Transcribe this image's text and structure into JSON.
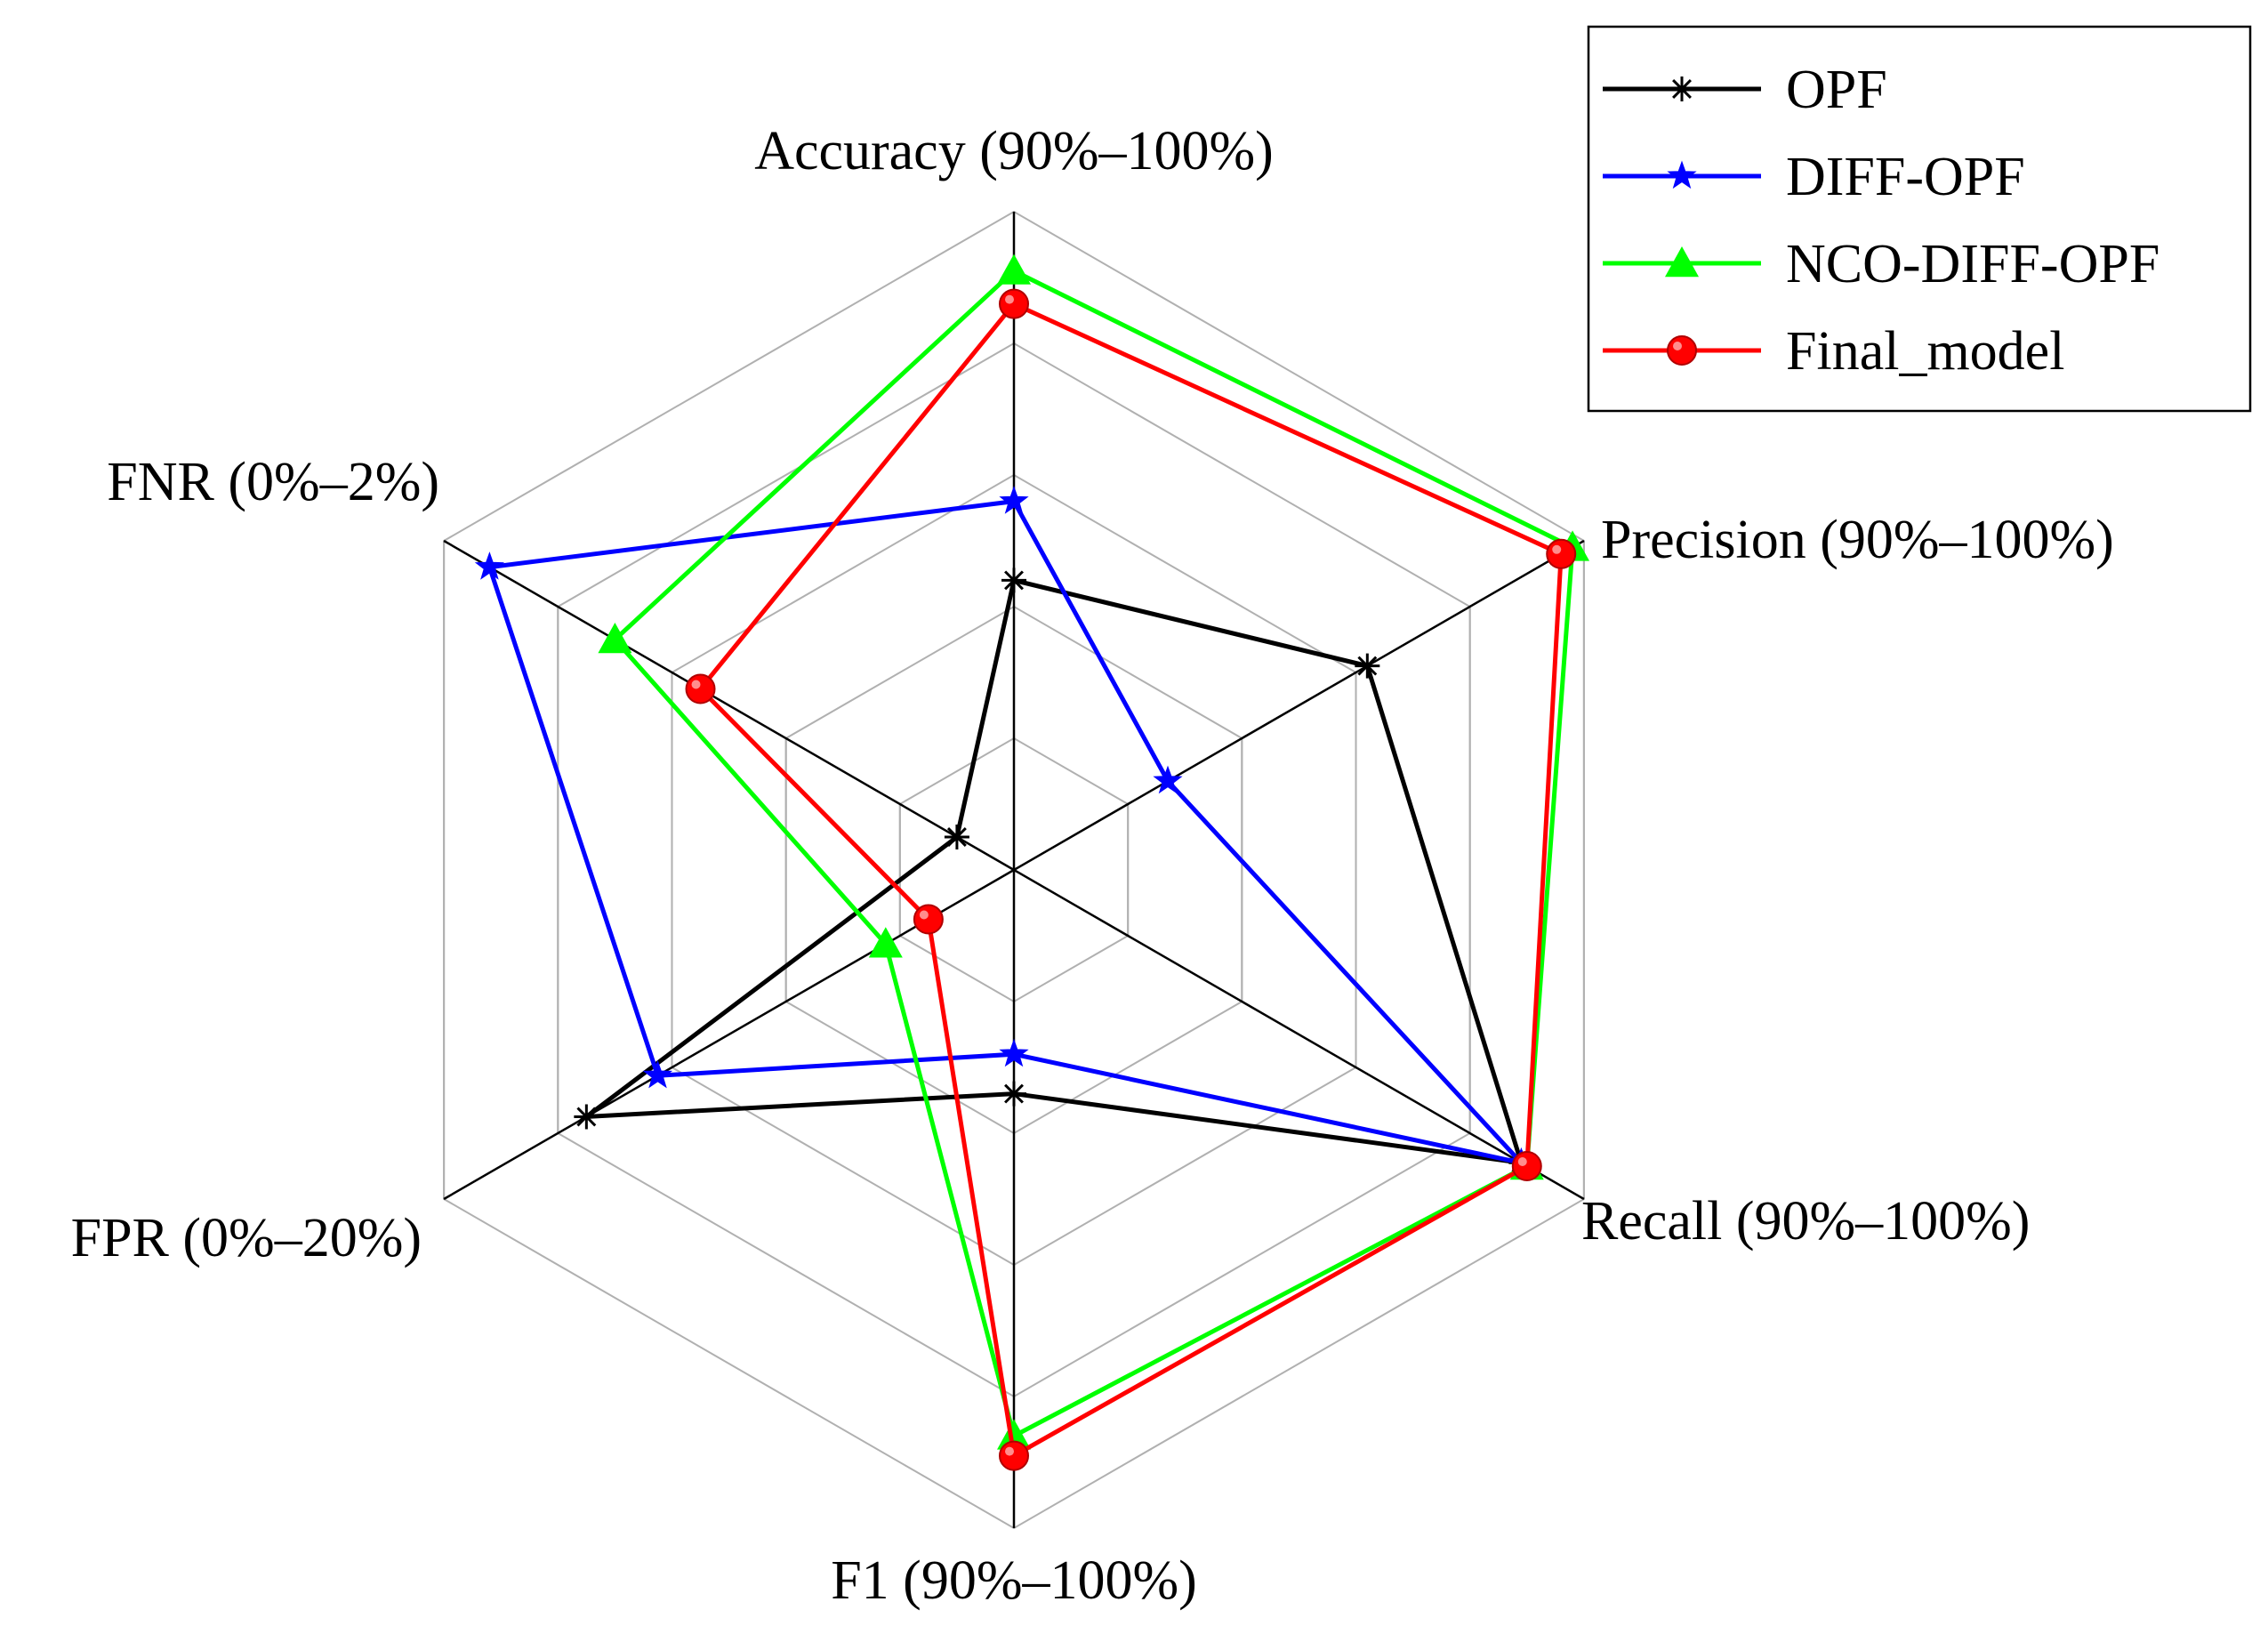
{
  "chart_data": {
    "type": "radar",
    "title": "",
    "axes": [
      {
        "name": "Accuracy",
        "range_label": "(90%–100%)",
        "min": 90,
        "max": 100,
        "unit": "%"
      },
      {
        "name": "Precision",
        "range_label": "(90%–100%)",
        "min": 90,
        "max": 100,
        "unit": "%"
      },
      {
        "name": "Recall",
        "range_label": "(90%–100%)",
        "min": 90,
        "max": 100,
        "unit": "%"
      },
      {
        "name": "F1",
        "range_label": "(90%–100%)",
        "min": 90,
        "max": 100,
        "unit": "%"
      },
      {
        "name": "FPR",
        "range_label": "(0%–20%)",
        "min": 0,
        "max": 20,
        "unit": "%"
      },
      {
        "name": "FNR",
        "range_label": "(0%–2%)",
        "min": 0,
        "max": 2,
        "unit": "%"
      }
    ],
    "gridlines": 5,
    "series": [
      {
        "name": "OPF",
        "color": "#000000",
        "marker": "asterisk",
        "values": [
          94.4,
          96.2,
          98.9,
          93.4,
          15.0,
          0.2
        ]
      },
      {
        "name": "DIFF-OPF",
        "color": "#0000ff",
        "marker": "star",
        "values": [
          95.6,
          92.7,
          98.9,
          92.8,
          12.5,
          1.84
        ]
      },
      {
        "name": "NCO-DIFF-OPF",
        "color": "#00ff00",
        "marker": "triangle",
        "values": [
          99.1,
          99.8,
          99.0,
          98.6,
          4.5,
          1.4
        ]
      },
      {
        "name": "Final_model",
        "color": "#ff0000",
        "marker": "circle",
        "values": [
          98.6,
          99.6,
          99.0,
          98.9,
          3.0,
          1.1
        ]
      }
    ],
    "legend_position": "top-right"
  }
}
